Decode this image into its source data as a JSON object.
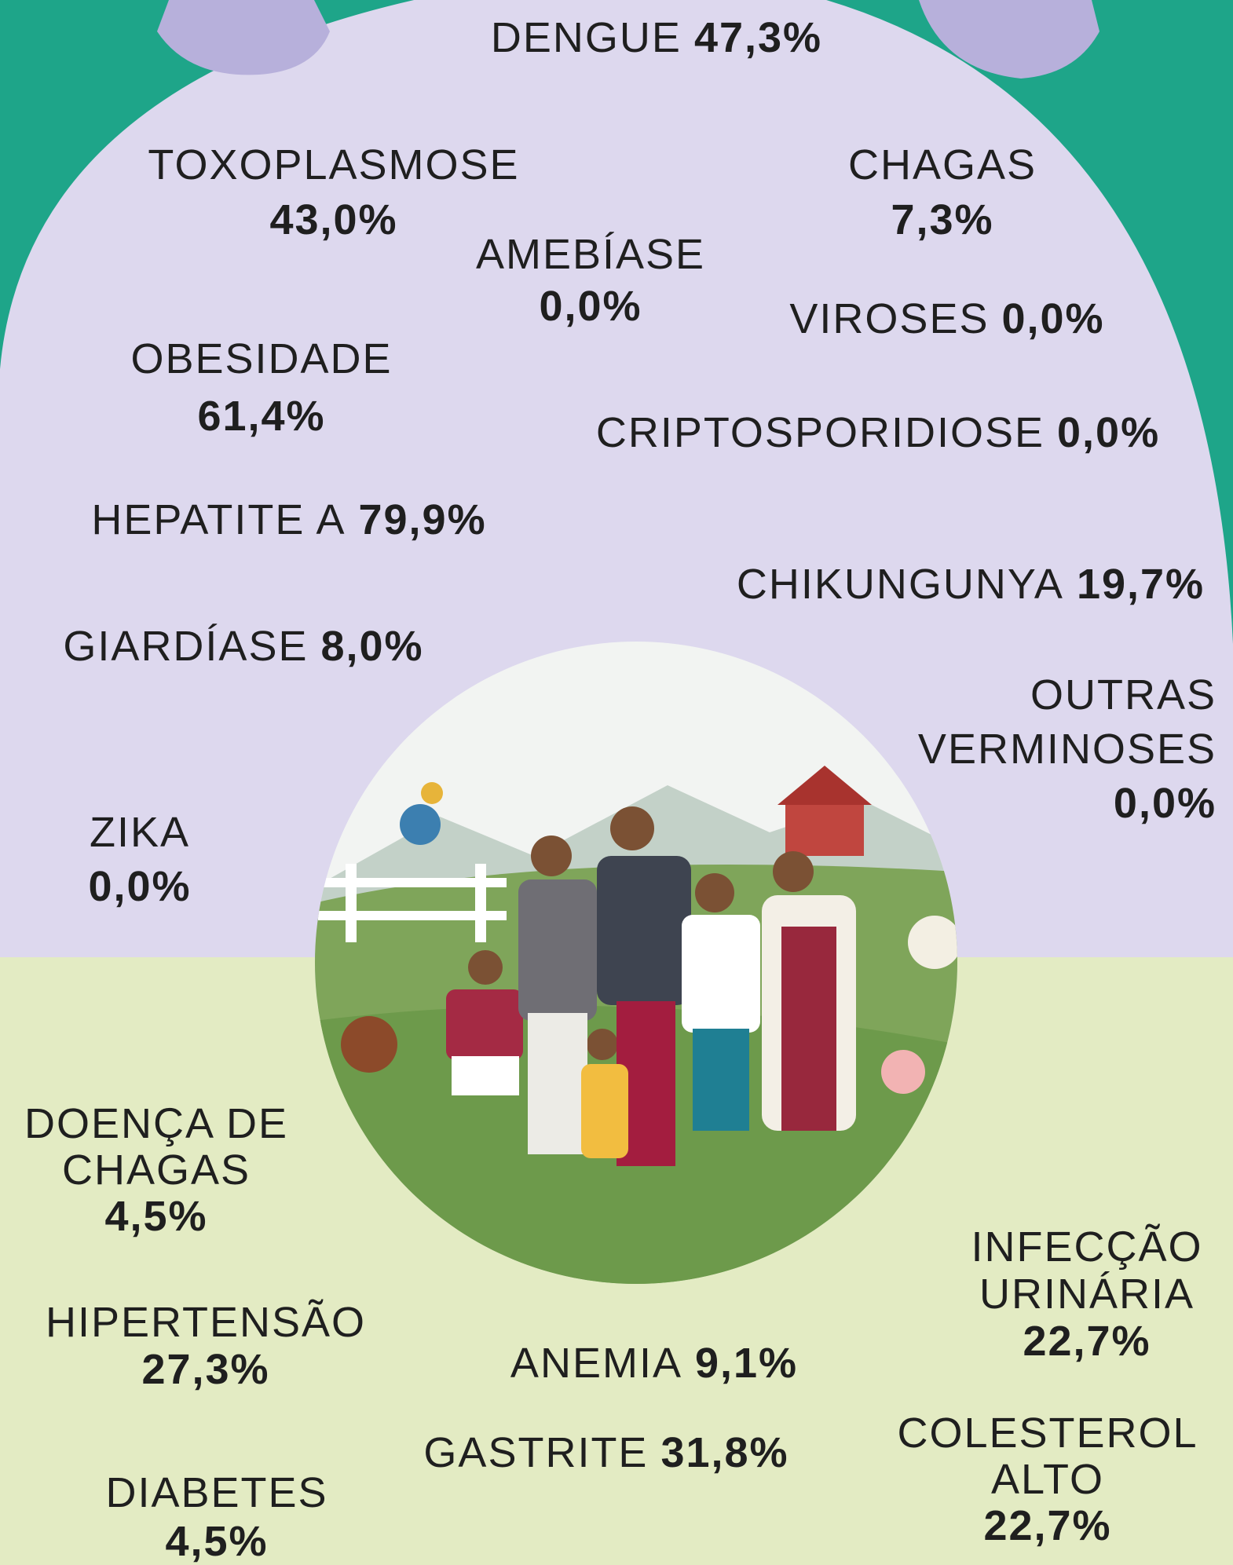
{
  "items": [
    {
      "label": [
        "DENGUE"
      ],
      "value": "47,3%"
    },
    {
      "label": [
        "TOXOPLASMOSE"
      ],
      "value": "43,0%"
    },
    {
      "label": [
        "CHAGAS"
      ],
      "value": "7,3%"
    },
    {
      "label": [
        "AMEBÍASE"
      ],
      "value": "0,0%"
    },
    {
      "label": [
        "VIROSES"
      ],
      "value": "0,0%"
    },
    {
      "label": [
        "OBESIDADE"
      ],
      "value": "61,4%"
    },
    {
      "label": [
        "CRIPTOSPORIDIOSE"
      ],
      "value": "0,0%"
    },
    {
      "label": [
        "HEPATITE A"
      ],
      "value": "79,9%"
    },
    {
      "label": [
        "CHIKUNGUNYA"
      ],
      "value": "19,7%"
    },
    {
      "label": [
        "GIARDÍASE"
      ],
      "value": "8,0%"
    },
    {
      "label": [
        "OUTRAS",
        "VERMINOSES"
      ],
      "value": "0,0%"
    },
    {
      "label": [
        "ZIKA"
      ],
      "value": "0,0%"
    },
    {
      "label": [
        "DOENÇA DE",
        "CHAGAS"
      ],
      "value": "4,5%"
    },
    {
      "label": [
        "HIPERTENSÃO"
      ],
      "value": "27,3%"
    },
    {
      "label": [
        "ANEMIA"
      ],
      "value": "9,1%"
    },
    {
      "label": [
        "INFECÇÃO",
        "URINÁRIA"
      ],
      "value": "22,7%"
    },
    {
      "label": [
        "GASTRITE"
      ],
      "value": "31,8%"
    },
    {
      "label": [
        "COLESTEROL",
        "ALTO"
      ],
      "value": "22,7%"
    },
    {
      "label": [
        "DIABETES"
      ],
      "value": "4,5%"
    }
  ]
}
